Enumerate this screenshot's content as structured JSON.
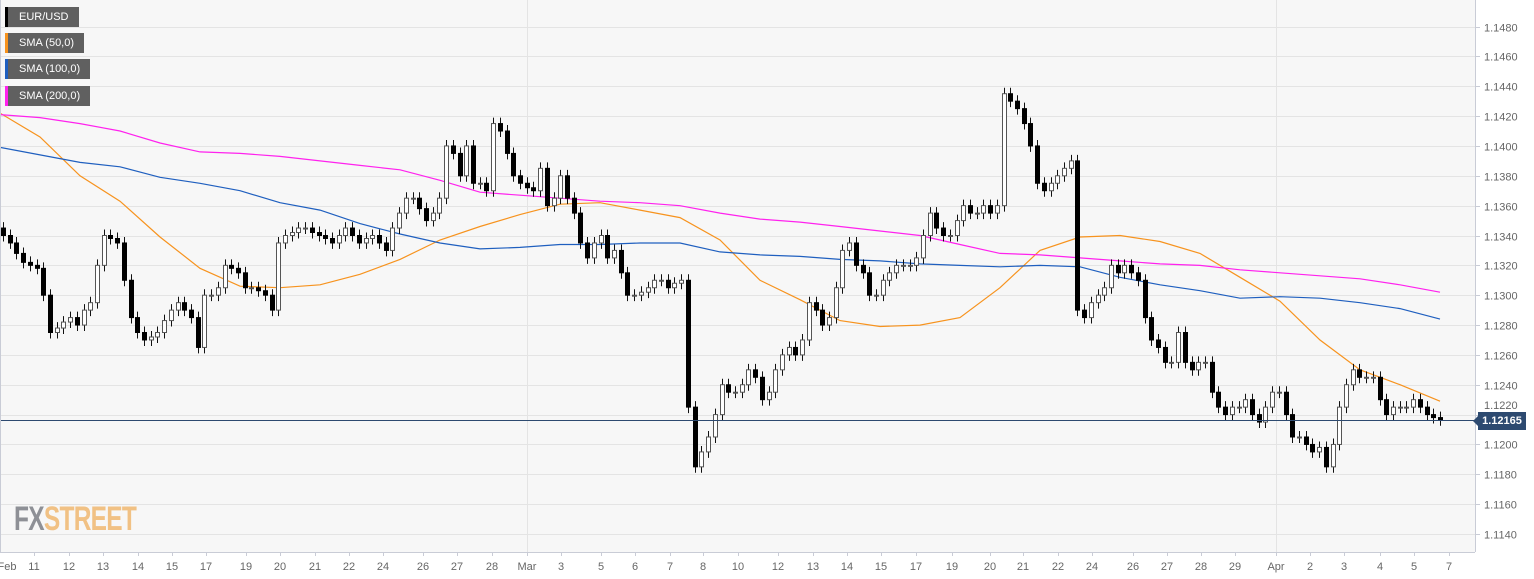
{
  "legend": [
    {
      "label": "EUR/USD",
      "color": "#000000"
    },
    {
      "label": "SMA (50,0)",
      "color": "#f7931e"
    },
    {
      "label": "SMA (100,0)",
      "color": "#1f5fbf"
    },
    {
      "label": "SMA (200,0)",
      "color": "#ff22ee"
    }
  ],
  "logo": {
    "part1": "FX",
    "part2": "STREET"
  },
  "current_price": "1.12165",
  "chart_data": {
    "type": "candlestick",
    "title": "EUR/USD",
    "xlabel": "",
    "ylabel": "",
    "ylim": [
      1.113,
      1.1494
    ],
    "y_ticks": [
      "1.1140",
      "1.1160",
      "1.1180",
      "1.1200",
      "1.1220",
      "1.1240",
      "1.1260",
      "1.1280",
      "1.1300",
      "1.1320",
      "1.1340",
      "1.1360",
      "1.1380",
      "1.1400",
      "1.1420",
      "1.1440",
      "1.1460",
      "1.1480"
    ],
    "x_ticks": [
      "Feb",
      "11",
      "12",
      "13",
      "14",
      "15",
      "17",
      "19",
      "20",
      "21",
      "22",
      "24",
      "26",
      "27",
      "28",
      "Mar",
      "3",
      "5",
      "6",
      "7",
      "8",
      "10",
      "12",
      "13",
      "14",
      "15",
      "17",
      "19",
      "20",
      "21",
      "22",
      "24",
      "26",
      "27",
      "28",
      "29",
      "Apr",
      "2",
      "3",
      "4",
      "5",
      "7"
    ],
    "grid": true,
    "last_price": 1.12165,
    "closes": [
      1.134,
      1.1335,
      1.1328,
      1.1322,
      1.132,
      1.1318,
      1.13,
      1.1275,
      1.1278,
      1.1282,
      1.1285,
      1.128,
      1.129,
      1.1295,
      1.132,
      1.134,
      1.1338,
      1.1335,
      1.131,
      1.1285,
      1.1275,
      1.127,
      1.1272,
      1.1275,
      1.1283,
      1.129,
      1.1295,
      1.129,
      1.1285,
      1.1265,
      1.13,
      1.13,
      1.1305,
      1.132,
      1.1318,
      1.1315,
      1.1305,
      1.1305,
      1.1303,
      1.13,
      1.129,
      1.1335,
      1.134,
      1.1342,
      1.1345,
      1.1345,
      1.1342,
      1.134,
      1.1338,
      1.1335,
      1.134,
      1.1345,
      1.134,
      1.1335,
      1.1338,
      1.134,
      1.1335,
      1.133,
      1.1345,
      1.1355,
      1.1365,
      1.1365,
      1.1358,
      1.135,
      1.1355,
      1.1365,
      1.14,
      1.1395,
      1.138,
      1.14,
      1.1375,
      1.1375,
      1.137,
      1.1415,
      1.141,
      1.1395,
      1.138,
      1.1375,
      1.1372,
      1.137,
      1.1385,
      1.136,
      1.1365,
      1.138,
      1.1365,
      1.1355,
      1.1335,
      1.1325,
      1.1335,
      1.134,
      1.1325,
      1.133,
      1.1315,
      1.13,
      1.13,
      1.1302,
      1.1305,
      1.131,
      1.131,
      1.1305,
      1.1308,
      1.131,
      1.1225,
      1.1185,
      1.1195,
      1.1205,
      1.122,
      1.124,
      1.1235,
      1.1235,
      1.124,
      1.125,
      1.1245,
      1.123,
      1.1235,
      1.125,
      1.126,
      1.1265,
      1.126,
      1.127,
      1.1295,
      1.129,
      1.128,
      1.1285,
      1.1305,
      1.133,
      1.1335,
      1.132,
      1.1315,
      1.13,
      1.13,
      1.131,
      1.1315,
      1.132,
      1.132,
      1.132,
      1.1325,
      1.134,
      1.1355,
      1.1345,
      1.134,
      1.134,
      1.135,
      1.136,
      1.1355,
      1.1355,
      1.136,
      1.1355,
      1.136,
      1.1435,
      1.143,
      1.1425,
      1.1415,
      1.14,
      1.1375,
      1.137,
      1.1375,
      1.138,
      1.1385,
      1.139,
      1.129,
      1.1285,
      1.1295,
      1.13,
      1.1305,
      1.132,
      1.1315,
      1.132,
      1.1315,
      1.131,
      1.1285,
      1.127,
      1.1265,
      1.1255,
      1.1255,
      1.1275,
      1.1255,
      1.125,
      1.1255,
      1.1255,
      1.1235,
      1.1225,
      1.122,
      1.1225,
      1.1225,
      1.123,
      1.122,
      1.1215,
      1.1225,
      1.1235,
      1.1235,
      1.122,
      1.1205,
      1.1205,
      1.12,
      1.1195,
      1.1198,
      1.1185,
      1.12,
      1.1225,
      1.124,
      1.125,
      1.1245,
      1.1245,
      1.1245,
      1.123,
      1.122,
      1.1225,
      1.1225,
      1.1225,
      1.123,
      1.1225,
      1.122,
      1.1218,
      1.12165
    ],
    "series": [
      {
        "name": "SMA (50,0)",
        "color": "#f7931e",
        "values": [
          1.1422,
          1.1406,
          1.138,
          1.1363,
          1.1339,
          1.1318,
          1.1306,
          1.1305,
          1.1307,
          1.1314,
          1.1324,
          1.1337,
          1.1346,
          1.1354,
          1.1361,
          1.1362,
          1.1357,
          1.1352,
          1.1337,
          1.131,
          1.1297,
          1.1283,
          1.1279,
          1.128,
          1.1285,
          1.1305,
          1.133,
          1.1339,
          1.134,
          1.1336,
          1.1328,
          1.1312,
          1.1296,
          1.127,
          1.125,
          1.124,
          1.1229
        ]
      },
      {
        "name": "SMA (100,0)",
        "color": "#1f5fbf",
        "values": [
          1.1399,
          1.1394,
          1.1389,
          1.1386,
          1.1379,
          1.1375,
          1.137,
          1.1362,
          1.1357,
          1.1348,
          1.1341,
          1.1335,
          1.1331,
          1.1332,
          1.1334,
          1.1334,
          1.1335,
          1.1335,
          1.1329,
          1.1327,
          1.1326,
          1.1324,
          1.1323,
          1.1321,
          1.132,
          1.1319,
          1.132,
          1.1319,
          1.1312,
          1.1307,
          1.1303,
          1.1298,
          1.1299,
          1.1298,
          1.1295,
          1.1291,
          1.1284
        ]
      },
      {
        "name": "SMA (200,0)",
        "color": "#ff22ee",
        "values": [
          1.1421,
          1.1419,
          1.1415,
          1.141,
          1.1402,
          1.1396,
          1.1395,
          1.1393,
          1.139,
          1.1387,
          1.1384,
          1.1377,
          1.1369,
          1.1367,
          1.1365,
          1.1363,
          1.1362,
          1.136,
          1.1355,
          1.1351,
          1.1349,
          1.1346,
          1.1343,
          1.134,
          1.1334,
          1.1328,
          1.1327,
          1.1325,
          1.1323,
          1.1321,
          1.132,
          1.1317,
          1.1315,
          1.1313,
          1.1311,
          1.1307,
          1.1302
        ]
      }
    ]
  }
}
